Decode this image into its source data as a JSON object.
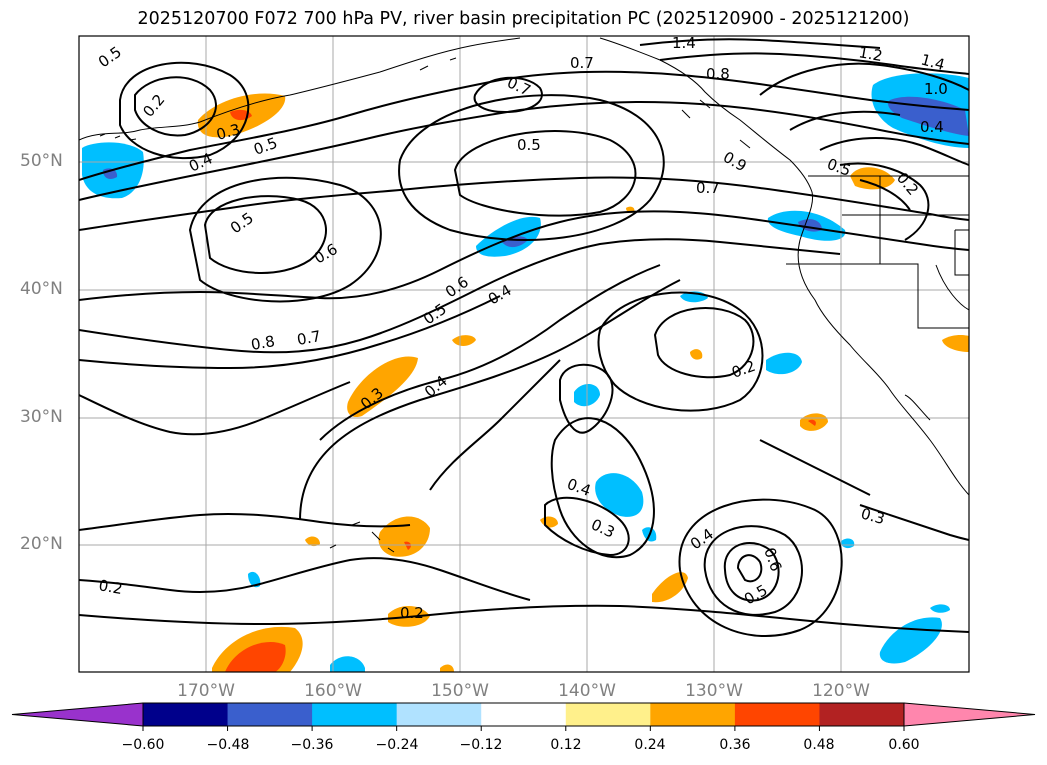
{
  "title": "2025120700 F072 700 hPa PV, river basin precipitation PC (2025120900 - 2025121200)",
  "lat_labels": [
    "50°N",
    "40°N",
    "30°N",
    "20°N"
  ],
  "lon_labels": [
    "170°W",
    "160°W",
    "150°W",
    "140°W",
    "130°W",
    "120°W"
  ],
  "contour_labels": [
    "0.5",
    "0.2",
    "0.3",
    "0.5",
    "0.4",
    "0.5",
    "0.6",
    "0.7",
    "0.5",
    "0.7",
    "0.8",
    "1.4",
    "1.2",
    "1.4",
    "1.0",
    "0.4",
    "0.9",
    "0.7",
    "0.5",
    "0.2",
    "0.6",
    "0.5",
    "0.4",
    "0.8",
    "0.7",
    "0.3",
    "0.4",
    "0.2",
    "0.4",
    "0.3",
    "0.4",
    "0.6",
    "0.5",
    "0.3",
    "0.2",
    "0.2"
  ],
  "colorbar": {
    "ticks": [
      "−0.60",
      "−0.48",
      "−0.36",
      "−0.24",
      "−0.12",
      "0.12",
      "0.24",
      "0.36",
      "0.48",
      "0.60"
    ],
    "colors": [
      "#9932cc",
      "#00008b",
      "#3a5fcd",
      "#00bfff",
      "#b0e2ff",
      "#ffffff",
      "#fff08b",
      "#ffa500",
      "#ff4500",
      "#b22222",
      "#ff86ad"
    ]
  },
  "colors": {
    "contour": "#000000",
    "land": "#000000",
    "grid": "#a9a9a9",
    "pos1": "#ffa500",
    "pos2": "#ff4500",
    "neg1": "#00bfff",
    "neg2": "#3a5fcd"
  }
}
